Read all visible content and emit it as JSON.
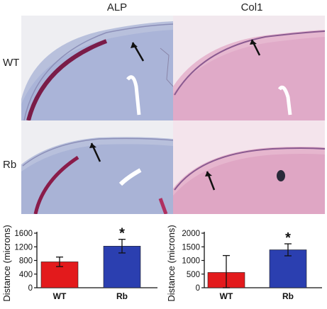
{
  "figure": {
    "column_titles": [
      "ALP",
      "Col1"
    ],
    "row_labels": [
      "WT",
      "Rb"
    ]
  },
  "chart_data": [
    {
      "type": "bar",
      "categories": [
        "WT",
        "Rb"
      ],
      "values": [
        760,
        1220
      ],
      "errors": [
        140,
        200
      ],
      "colors": [
        "#e31a1c",
        "#2b3fb0"
      ],
      "significance": [
        "",
        "*"
      ],
      "ylabel": "Distance (microns)",
      "ylim": [
        0,
        1600
      ],
      "yticks": [
        0,
        400,
        800,
        1200,
        1600
      ],
      "grid": false
    },
    {
      "type": "bar",
      "categories": [
        "WT",
        "Rb"
      ],
      "values": [
        560,
        1390
      ],
      "errors": [
        620,
        220
      ],
      "colors": [
        "#e31a1c",
        "#2b3fb0"
      ],
      "significance": [
        "",
        "*"
      ],
      "ylabel": "Distance (microns)",
      "ylim": [
        0,
        2000
      ],
      "yticks": [
        0,
        500,
        1000,
        1500,
        2000
      ],
      "grid": false
    }
  ]
}
